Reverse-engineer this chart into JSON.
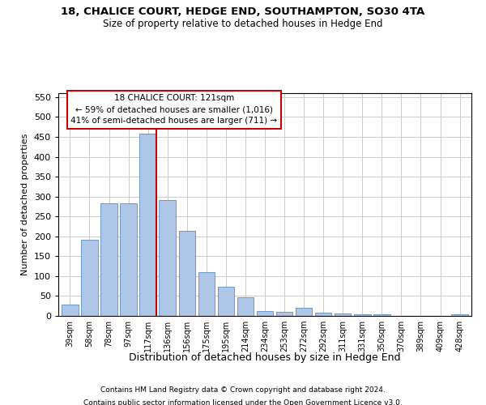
{
  "title1": "18, CHALICE COURT, HEDGE END, SOUTHAMPTON, SO30 4TA",
  "title2": "Size of property relative to detached houses in Hedge End",
  "xlabel": "Distribution of detached houses by size in Hedge End",
  "ylabel": "Number of detached properties",
  "categories": [
    "39sqm",
    "58sqm",
    "78sqm",
    "97sqm",
    "117sqm",
    "136sqm",
    "156sqm",
    "175sqm",
    "195sqm",
    "214sqm",
    "234sqm",
    "253sqm",
    "272sqm",
    "292sqm",
    "311sqm",
    "331sqm",
    "350sqm",
    "370sqm",
    "389sqm",
    "409sqm",
    "428sqm"
  ],
  "values": [
    28,
    191,
    284,
    284,
    458,
    291,
    213,
    110,
    73,
    46,
    12,
    10,
    20,
    9,
    6,
    4,
    5,
    0,
    0,
    0,
    5
  ],
  "bar_color": "#aec6e8",
  "bar_edge_color": "#5a8fc0",
  "vline_color": "#cc0000",
  "vline_x": 4.425,
  "annotation_text": "18 CHALICE COURT: 121sqm\n← 59% of detached houses are smaller (1,016)\n41% of semi-detached houses are larger (711) →",
  "annotation_box_color": "#ffffff",
  "annotation_box_edge": "#cc0000",
  "ylim": [
    0,
    560
  ],
  "yticks": [
    0,
    50,
    100,
    150,
    200,
    250,
    300,
    350,
    400,
    450,
    500,
    550
  ],
  "footer1": "Contains HM Land Registry data © Crown copyright and database right 2024.",
  "footer2": "Contains public sector information licensed under the Open Government Licence v3.0.",
  "bg_color": "#ffffff",
  "grid_color": "#cccccc"
}
